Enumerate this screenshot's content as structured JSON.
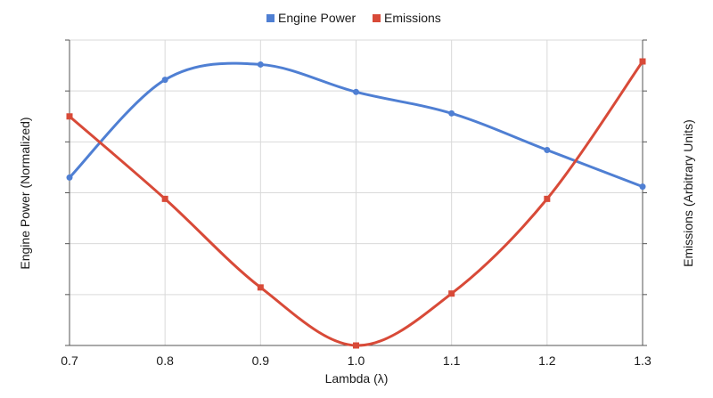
{
  "chart_data": {
    "type": "line",
    "title": "",
    "xlabel": "Lambda (λ)",
    "ylabel_left": "Engine Power (Normalized)",
    "ylabel_right": "Emissions (Arbitrary Units)",
    "x": [
      0.7,
      0.8,
      0.9,
      1.0,
      1.1,
      1.2,
      1.3
    ],
    "x_tick_labels": [
      "0.7",
      "0.8",
      "0.9",
      "1.0",
      "1.1",
      "1.2",
      "1.3"
    ],
    "xlim": [
      0.7,
      1.3
    ],
    "ylim_left": [
      0,
      100
    ],
    "ylim_right": [
      0,
      100
    ],
    "y_tick_count": 6,
    "y_tick_labels_shown": false,
    "grid": true,
    "legend_position": "top-center",
    "smooth": true,
    "series": [
      {
        "name": "Engine Power",
        "axis": "left",
        "color": "#4f7fd3",
        "marker": "circle",
        "values": [
          55,
          87,
          92,
          83,
          76,
          64,
          52
        ]
      },
      {
        "name": "Emissions",
        "axis": "right",
        "color": "#d84a38",
        "marker": "square",
        "values": [
          75,
          48,
          19,
          0,
          17,
          48,
          93
        ]
      }
    ]
  }
}
